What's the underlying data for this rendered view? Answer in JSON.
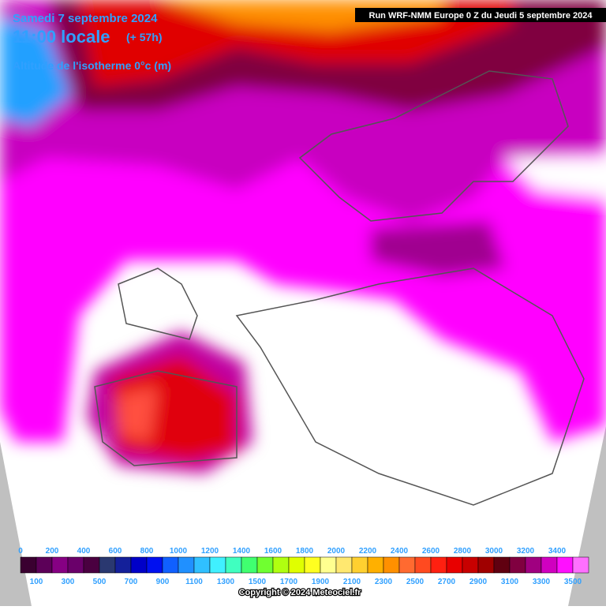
{
  "header": {
    "date": "Samedi 7 septembre 2024",
    "time": "11:00 locale",
    "lead": "(+ 57h)",
    "parameter": "Altitude de l'isotherme 0°c (m)",
    "run": "Run WRF-NMM Europe 0 Z du Jeudi 5 septembre 2024"
  },
  "legend": {
    "top_labels": [
      0,
      200,
      400,
      600,
      800,
      1000,
      1200,
      1400,
      1600,
      1800,
      2000,
      2200,
      2400,
      2600,
      2800,
      3000,
      3200,
      3400
    ],
    "bottom_labels": [
      100,
      300,
      500,
      700,
      900,
      1100,
      1300,
      1500,
      1700,
      1900,
      2100,
      2300,
      2500,
      2700,
      2900,
      3100,
      3300,
      3500
    ],
    "colors": [
      "#3a0030",
      "#5c0058",
      "#860083",
      "#6a006a",
      "#4a0040",
      "#2a3870",
      "#14209a",
      "#0000c8",
      "#0010f0",
      "#1060ff",
      "#2090ff",
      "#30c0ff",
      "#40f0ff",
      "#40ffc0",
      "#40ff70",
      "#70ff30",
      "#b0ff10",
      "#e0ff00",
      "#ffff20",
      "#ffff90",
      "#ffe870",
      "#ffd030",
      "#ffb000",
      "#ff9000",
      "#ff6a30",
      "#ff4a20",
      "#ff2010",
      "#e80000",
      "#c80000",
      "#a00000",
      "#600010",
      "#800040",
      "#a00080",
      "#d000c0",
      "#ff10ff",
      "#ff70ff"
    ]
  },
  "footer": {
    "copyright": "Copyright © 2024 Meteociel.fr"
  }
}
